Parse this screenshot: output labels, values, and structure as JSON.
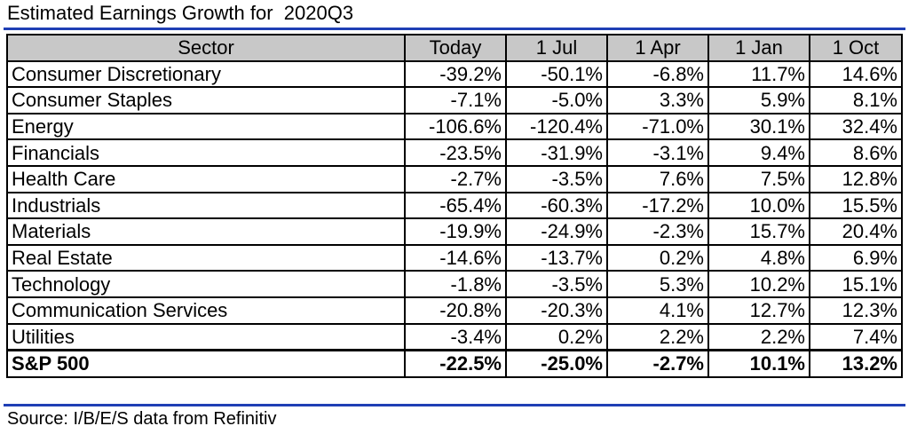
{
  "title": "Estimated Earnings Growth for  2020Q3",
  "columns": [
    "Sector",
    "Today",
    "1 Jul",
    "1 Apr",
    "1 Jan",
    "1 Oct"
  ],
  "rows": [
    {
      "sector": "Consumer Discretionary",
      "values": [
        "-39.2%",
        "-50.1%",
        "-6.8%",
        "11.7%",
        "14.6%"
      ]
    },
    {
      "sector": "Consumer Staples",
      "values": [
        "-7.1%",
        "-5.0%",
        "3.3%",
        "5.9%",
        "8.1%"
      ]
    },
    {
      "sector": "Energy",
      "values": [
        "-106.6%",
        "-120.4%",
        "-71.0%",
        "30.1%",
        "32.4%"
      ]
    },
    {
      "sector": "Financials",
      "values": [
        "-23.5%",
        "-31.9%",
        "-3.1%",
        "9.4%",
        "8.6%"
      ]
    },
    {
      "sector": "Health Care",
      "values": [
        "-2.7%",
        "-3.5%",
        "7.6%",
        "7.5%",
        "12.8%"
      ]
    },
    {
      "sector": "Industrials",
      "values": [
        "-65.4%",
        "-60.3%",
        "-17.2%",
        "10.0%",
        "15.5%"
      ]
    },
    {
      "sector": "Materials",
      "values": [
        "-19.9%",
        "-24.9%",
        "-2.3%",
        "15.7%",
        "20.4%"
      ]
    },
    {
      "sector": "Real Estate",
      "values": [
        "-14.6%",
        "-13.7%",
        "0.2%",
        "4.8%",
        "6.9%"
      ]
    },
    {
      "sector": "Technology",
      "values": [
        "-1.8%",
        "-3.5%",
        "5.3%",
        "10.2%",
        "15.1%"
      ]
    },
    {
      "sector": "Communication Services",
      "values": [
        "-20.8%",
        "-20.3%",
        "4.1%",
        "12.7%",
        "12.3%"
      ]
    },
    {
      "sector": "Utilities",
      "values": [
        "-3.4%",
        "0.2%",
        "2.2%",
        "2.2%",
        "7.4%"
      ]
    }
  ],
  "total": {
    "sector": "S&P 500",
    "values": [
      "-22.5%",
      "-25.0%",
      "-2.7%",
      "10.1%",
      "13.2%"
    ]
  },
  "source": "Source: I/B/E/S data from Refinitiv",
  "colors": {
    "rule": "#1f3fb5",
    "header_bg": "#c8c8c8"
  }
}
